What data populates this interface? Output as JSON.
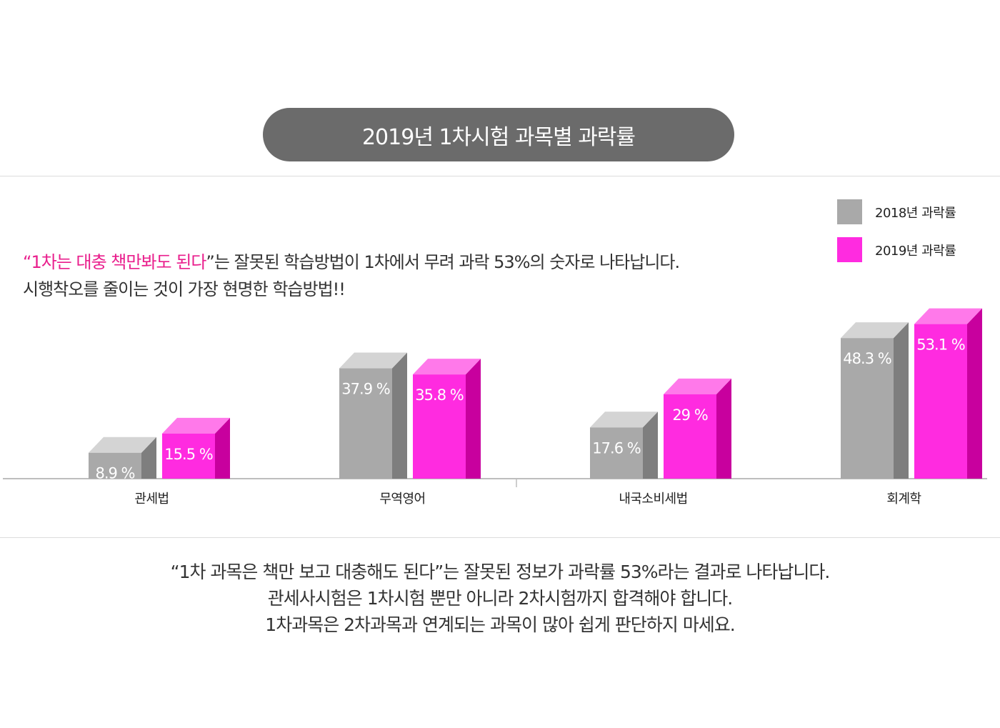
{
  "title": "2019년 1차시험 과목별 과락률",
  "legend": [
    {
      "label": "2018년 과락률",
      "color": "#a9a9a9"
    },
    {
      "label": "2019년 과락률",
      "color": "#ff2be0"
    }
  ],
  "headline": {
    "open_quote": "“",
    "highlight": "1차는 대충 책만봐도 된다",
    "rest": "”는 잘못된 학습방법이 1차에서 무려 과락 53%의 숫자로 나타납니다.",
    "line2": "시행착오를 줄이는 것이 가장 현명한 학습방법!!"
  },
  "chart_data": {
    "type": "bar",
    "categories": [
      "관세법",
      "무역영어",
      "내국소비세법",
      "회계학"
    ],
    "series": [
      {
        "name": "2018년 과락률",
        "values": [
          8.9,
          37.9,
          17.6,
          48.3
        ],
        "labels": [
          "8.9 %",
          "37.9 %",
          "17.6 %",
          "48.3 %"
        ],
        "color": "#a9a9a9"
      },
      {
        "name": "2019년 과락률",
        "values": [
          15.5,
          35.8,
          29,
          53.1
        ],
        "labels": [
          "15.5 %",
          "35.8 %",
          "29 %",
          "53.1 %"
        ],
        "color": "#ff2be0"
      }
    ],
    "ylim": [
      0,
      60
    ],
    "grid": false
  },
  "bottom_text": [
    "“1차 과목은 책만 보고 대충해도 된다”는 잘못된 정보가 과락률 53%라는 결과로 나타납니다.",
    "관세사시험은 1차시험 뿐만 아니라 2차시험까지 합격해야 합니다.",
    "1차과목은 2차과목과 연계되는 과목이 많아 쉽게 판단하지 마세요."
  ]
}
